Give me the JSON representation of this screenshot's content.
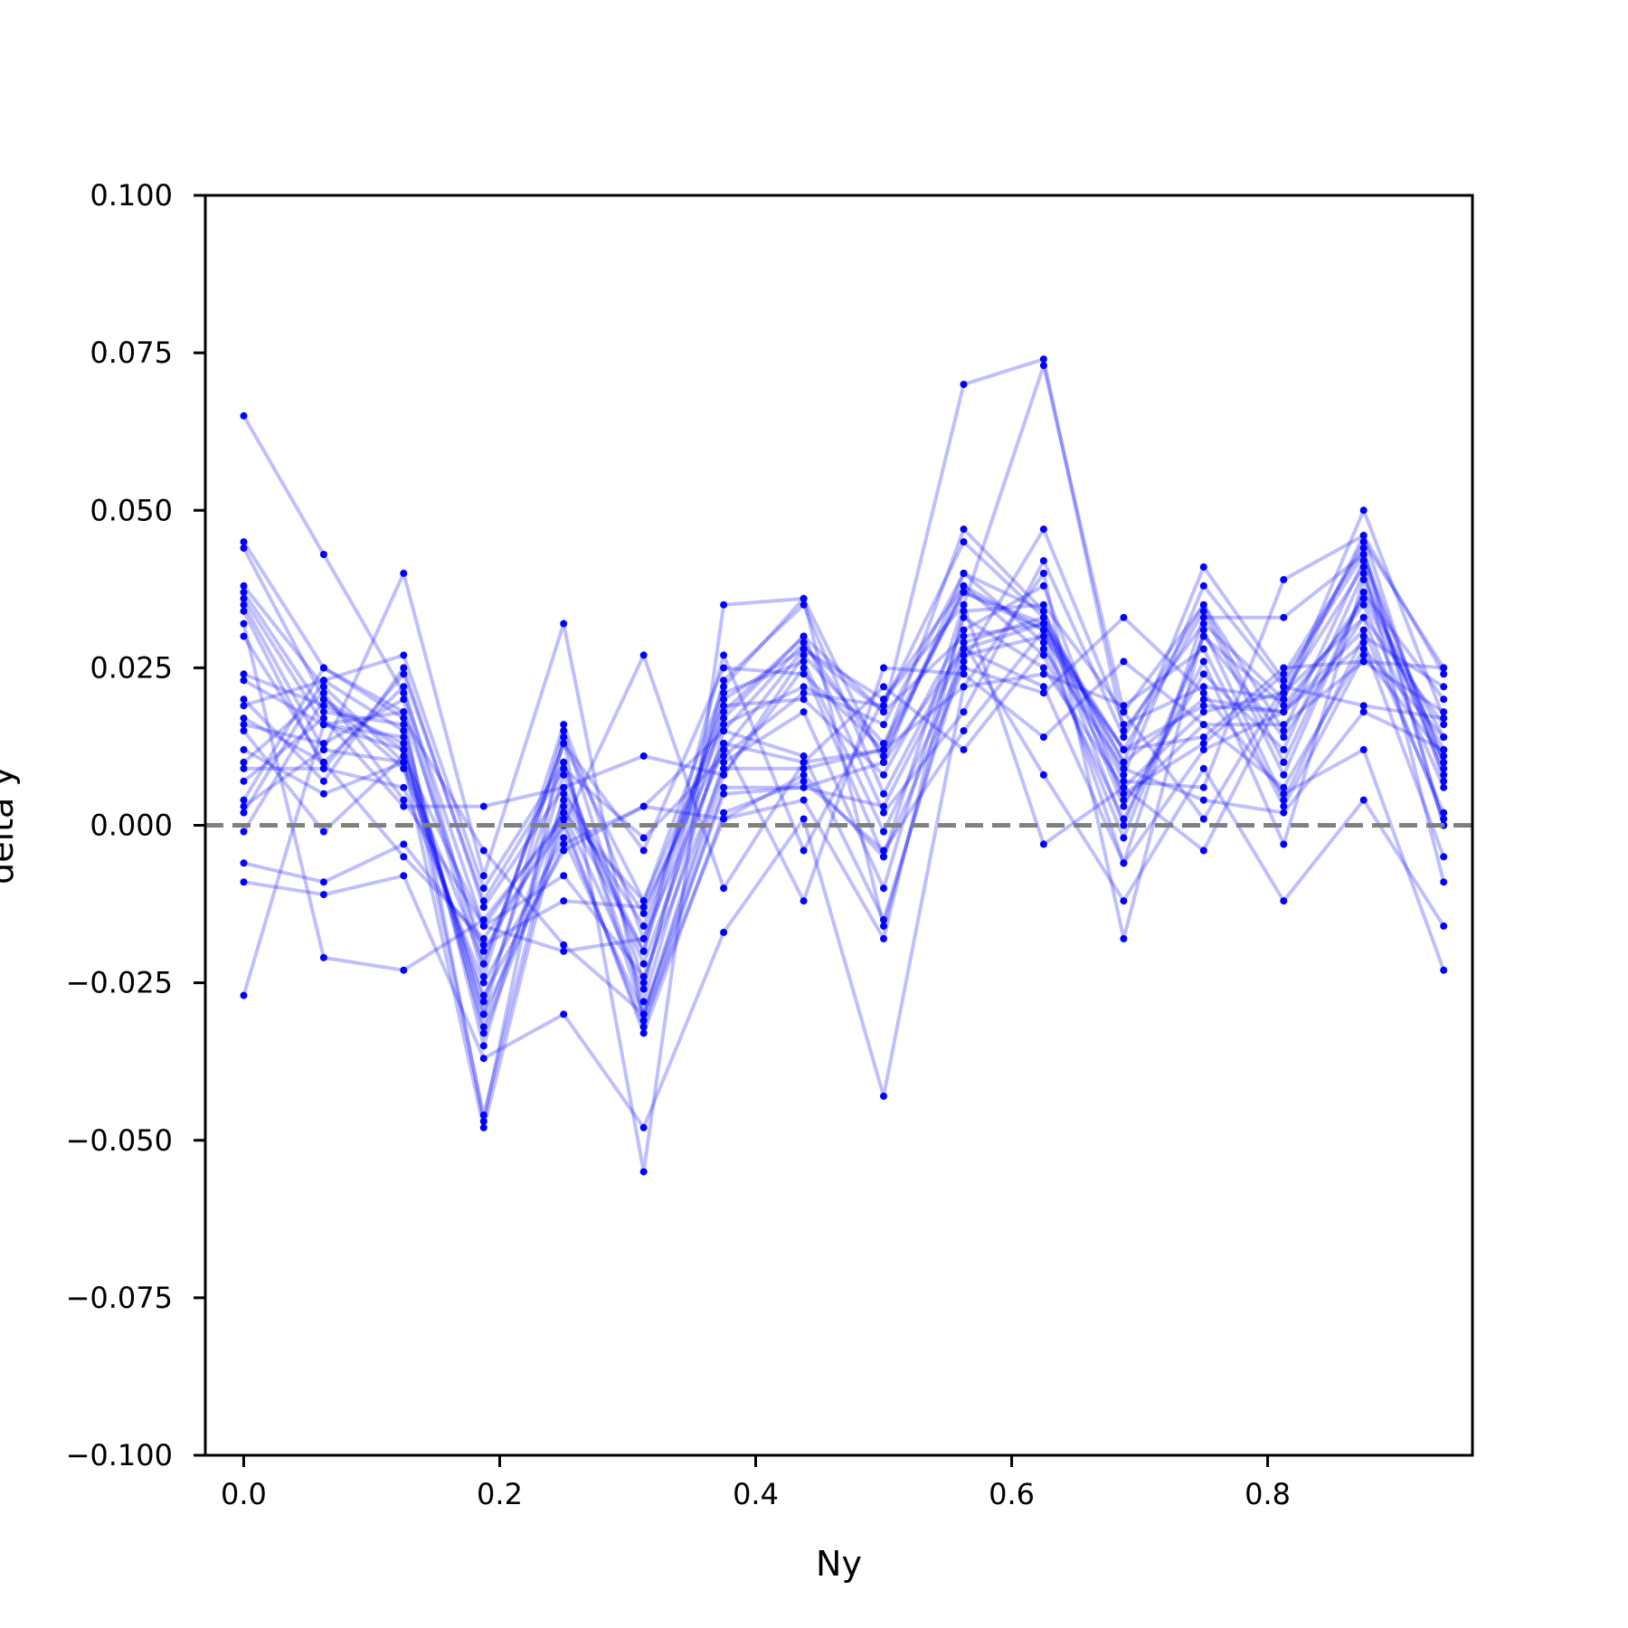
{
  "chart_data": {
    "type": "line",
    "title": "",
    "xlabel": "Ny",
    "ylabel": "delta y",
    "xlim": [
      -0.03,
      0.96
    ],
    "ylim": [
      -0.1,
      0.1
    ],
    "xticks": [
      0.0,
      0.2,
      0.4,
      0.6,
      0.8
    ],
    "xtick_labels": [
      "0.0",
      "0.2",
      "0.4",
      "0.6",
      "0.8"
    ],
    "yticks": [
      -0.1,
      -0.075,
      -0.05,
      -0.025,
      0.0,
      0.025,
      0.05,
      0.075,
      0.1
    ],
    "ytick_labels": [
      "−0.100",
      "−0.075",
      "−0.050",
      "−0.025",
      "0.000",
      "0.025",
      "0.050",
      "0.075",
      "0.100"
    ],
    "grid": false,
    "reference_line": {
      "y": 0.0,
      "style": "dashed",
      "color": "#808080"
    },
    "series_color": "#0000ff",
    "series_alpha": 0.25,
    "x": [
      0.0,
      0.0625,
      0.125,
      0.1875,
      0.25,
      0.3125,
      0.375,
      0.4375,
      0.5,
      0.5625,
      0.625,
      0.6875,
      0.75,
      0.8125,
      0.875,
      0.9375
    ],
    "series": [
      {
        "values": [
          0.065,
          0.043,
          0.021,
          -0.016,
          -0.02,
          -0.018,
          0.012,
          0.028,
          0.018,
          0.03,
          0.032,
          0.01,
          0.02,
          0.018,
          0.036,
          0.012
        ]
      },
      {
        "values": [
          0.045,
          0.025,
          0.018,
          -0.02,
          0.002,
          -0.012,
          0.022,
          0.036,
          0.01,
          0.04,
          0.034,
          0.008,
          0.038,
          0.022,
          0.045,
          0.025
        ]
      },
      {
        "values": [
          0.044,
          0.02,
          0.012,
          -0.03,
          0.015,
          -0.025,
          0.018,
          0.03,
          0.018,
          0.07,
          0.074,
          0.015,
          0.032,
          0.02,
          0.05,
          0.017
        ]
      },
      {
        "values": [
          0.038,
          0.022,
          0.01,
          -0.028,
          0.01,
          -0.03,
          0.008,
          0.025,
          -0.005,
          0.035,
          0.073,
          0.018,
          0.035,
          0.015,
          0.042,
          0.01
        ]
      },
      {
        "values": [
          0.037,
          0.018,
          0.016,
          -0.035,
          0.008,
          -0.022,
          0.013,
          0.01,
          0.012,
          0.047,
          0.034,
          0.003,
          0.024,
          0.012,
          0.04,
          0.008
        ]
      },
      {
        "values": [
          0.036,
          0.016,
          0.014,
          -0.046,
          0.005,
          -0.014,
          0.016,
          0.022,
          0.016,
          0.04,
          0.029,
          -0.002,
          0.03,
          0.019,
          0.035,
          0.006
        ]
      },
      {
        "values": [
          0.035,
          0.012,
          0.01,
          -0.048,
          0.003,
          -0.02,
          0.02,
          0.028,
          0.02,
          0.038,
          0.031,
          0.012,
          0.034,
          0.008,
          0.037,
          0.02
        ]
      },
      {
        "values": [
          0.034,
          0.009,
          0.006,
          -0.025,
          -0.002,
          -0.03,
          0.01,
          0.018,
          -0.01,
          0.033,
          0.025,
          0.006,
          0.018,
          0.021,
          0.033,
          0.016
        ]
      },
      {
        "values": [
          0.03,
          0.01,
          -0.005,
          -0.018,
          0.0,
          -0.032,
          0.006,
          0.006,
          0.003,
          0.028,
          0.022,
          -0.006,
          0.012,
          0.018,
          0.031,
          0.002
        ]
      },
      {
        "values": [
          0.023,
          0.016,
          0.012,
          -0.032,
          0.004,
          -0.016,
          0.019,
          0.02,
          0.008,
          0.031,
          0.038,
          0.004,
          0.016,
          0.006,
          0.028,
          0.014
        ]
      },
      {
        "values": [
          0.019,
          0.023,
          0.027,
          -0.01,
          0.01,
          -0.028,
          0.015,
          0.011,
          -0.015,
          0.027,
          0.03,
          0.012,
          0.014,
          0.025,
          0.026,
          0.018
        ]
      },
      {
        "values": [
          0.017,
          0.01,
          0.022,
          -0.022,
          0.013,
          -0.012,
          0.017,
          0.03,
          0.002,
          0.018,
          0.042,
          0.014,
          0.035,
          0.01,
          0.037,
          0.014
        ]
      },
      {
        "values": [
          0.016,
          0.013,
          0.02,
          -0.024,
          0.016,
          -0.018,
          0.021,
          0.026,
          -0.001,
          0.026,
          0.047,
          0.016,
          0.022,
          0.02,
          0.046,
          0.007
        ]
      },
      {
        "values": [
          0.015,
          -0.001,
          0.011,
          -0.016,
          -0.008,
          -0.024,
          0.009,
          0.009,
          0.012,
          0.022,
          0.024,
          0.019,
          0.028,
          0.003,
          0.027,
          0.011
        ]
      },
      {
        "values": [
          0.01,
          0.021,
          0.004,
          -0.016,
          0.002,
          -0.026,
          0.023,
          0.035,
          0.005,
          0.029,
          0.033,
          0.01,
          0.041,
          0.023,
          0.043,
          0.01
        ]
      },
      {
        "values": [
          0.009,
          0.009,
          0.024,
          -0.012,
          0.009,
          -0.002,
          0.011,
          0.021,
          0.019,
          0.045,
          0.033,
          0.0,
          0.03,
          0.014,
          0.033,
          0.001
        ]
      },
      {
        "values": [
          0.007,
          0.017,
          0.003,
          0.003,
          0.006,
          0.011,
          0.008,
          0.027,
          0.013,
          0.037,
          0.031,
          -0.006,
          0.033,
          0.033,
          0.043,
          0.0
        ]
      },
      {
        "values": [
          0.004,
          0.025,
          0.017,
          -0.004,
          -0.019,
          -0.03,
          0.005,
          0.006,
          0.01,
          0.028,
          0.032,
          0.007,
          0.006,
          0.039,
          0.046,
          0.024
        ]
      },
      {
        "values": [
          0.003,
          0.012,
          0.04,
          -0.008,
          0.032,
          -0.031,
          0.001,
          0.004,
          -0.018,
          0.034,
          0.035,
          0.018,
          0.001,
          0.022,
          0.019,
          0.017
        ]
      },
      {
        "values": [
          -0.001,
          0.02,
          0.009,
          -0.027,
          -0.004,
          0.003,
          0.001,
          0.008,
          -0.005,
          0.025,
          0.021,
          0.033,
          0.021,
          0.005,
          0.012,
          -0.023
        ]
      },
      {
        "values": [
          -0.006,
          -0.009,
          -0.003,
          -0.019,
          -0.012,
          -0.013,
          0.013,
          -0.012,
          0.025,
          0.024,
          0.014,
          0.026,
          0.016,
          0.016,
          0.026,
          0.025
        ]
      },
      {
        "values": [
          -0.009,
          -0.011,
          -0.008,
          -0.037,
          -0.03,
          -0.048,
          -0.017,
          0.001,
          -0.043,
          0.022,
          0.04,
          -0.018,
          0.031,
          0.004,
          0.03,
          0.022
        ]
      },
      {
        "values": [
          -0.027,
          0.016,
          0.018,
          -0.047,
          0.014,
          -0.055,
          0.035,
          0.036,
          -0.016,
          0.029,
          0.008,
          -0.012,
          0.009,
          -0.012,
          0.004,
          -0.016
        ]
      },
      {
        "values": [
          0.002,
          0.023,
          0.015,
          -0.033,
          0.0,
          0.027,
          -0.01,
          0.01,
          0.022,
          0.012,
          0.028,
          0.009,
          0.004,
          0.002,
          0.018,
          0.012
        ]
      },
      {
        "values": [
          0.012,
          0.005,
          0.01,
          -0.022,
          0.013,
          -0.004,
          0.025,
          0.024,
          0.012,
          0.037,
          0.032,
          0.012,
          0.019,
          0.018,
          0.029,
          -0.005
        ]
      },
      {
        "values": [
          0.02,
          0.007,
          0.025,
          -0.013,
          0.006,
          -0.02,
          0.027,
          -0.004,
          0.02,
          0.035,
          -0.003,
          0.006,
          -0.004,
          0.021,
          0.041,
          -0.009
        ]
      },
      {
        "values": [
          0.032,
          -0.021,
          -0.023,
          -0.015,
          0.001,
          -0.033,
          0.002,
          0.007,
          -0.004,
          0.015,
          0.031,
          0.005,
          0.013,
          0.024,
          0.044,
          0.0
        ]
      },
      {
        "values": [
          0.024,
          0.019,
          0.013,
          -0.03,
          -0.003,
          0.003,
          0.015,
          0.029,
          0.011,
          0.038,
          0.027,
          0.001,
          0.026,
          -0.003,
          0.039,
          0.009
        ]
      }
    ]
  }
}
